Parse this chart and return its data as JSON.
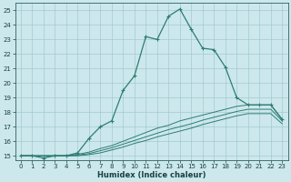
{
  "xlabel": "Humidex (Indice chaleur)",
  "bg_color": "#cce8ec",
  "grid_color": "#99c4ca",
  "line_color": "#2e7d72",
  "xlim": [
    -0.5,
    23.5
  ],
  "ylim": [
    14.7,
    25.5
  ],
  "xticks": [
    0,
    1,
    2,
    3,
    4,
    5,
    6,
    7,
    8,
    9,
    10,
    11,
    12,
    13,
    14,
    15,
    16,
    17,
    18,
    19,
    20,
    21,
    22,
    23
  ],
  "yticks": [
    15,
    16,
    17,
    18,
    19,
    20,
    21,
    22,
    23,
    24,
    25
  ],
  "main_line": {
    "x": [
      0,
      1,
      2,
      3,
      4,
      5,
      6,
      7,
      8,
      9,
      10,
      11,
      12,
      13,
      14,
      15,
      16,
      17,
      18,
      19,
      20,
      21,
      22,
      23
    ],
    "y": [
      15.0,
      15.0,
      14.85,
      15.0,
      15.0,
      15.2,
      16.2,
      17.0,
      17.4,
      19.5,
      20.5,
      23.2,
      23.0,
      24.6,
      25.1,
      23.7,
      22.4,
      22.3,
      21.1,
      19.0,
      18.5,
      18.5,
      18.5,
      17.5
    ]
  },
  "flat_lines": [
    {
      "x": [
        0,
        1,
        2,
        3,
        4,
        5,
        6,
        7,
        8,
        9,
        10,
        11,
        12,
        13,
        14,
        15,
        16,
        17,
        18,
        19,
        20,
        21,
        22,
        23
      ],
      "y": [
        15.0,
        15.0,
        15.0,
        15.0,
        15.0,
        15.1,
        15.25,
        15.5,
        15.7,
        16.0,
        16.3,
        16.6,
        16.9,
        17.1,
        17.4,
        17.6,
        17.8,
        18.0,
        18.2,
        18.4,
        18.5,
        18.5,
        18.5,
        17.5
      ]
    },
    {
      "x": [
        0,
        1,
        2,
        3,
        4,
        5,
        6,
        7,
        8,
        9,
        10,
        11,
        12,
        13,
        14,
        15,
        16,
        17,
        18,
        19,
        20,
        21,
        22,
        23
      ],
      "y": [
        15.0,
        15.0,
        15.0,
        15.0,
        15.0,
        15.05,
        15.15,
        15.35,
        15.55,
        15.8,
        16.05,
        16.3,
        16.55,
        16.8,
        17.0,
        17.2,
        17.45,
        17.65,
        17.85,
        18.05,
        18.2,
        18.2,
        18.2,
        17.4
      ]
    },
    {
      "x": [
        0,
        1,
        2,
        3,
        4,
        5,
        6,
        7,
        8,
        9,
        10,
        11,
        12,
        13,
        14,
        15,
        16,
        17,
        18,
        19,
        20,
        21,
        22,
        23
      ],
      "y": [
        15.0,
        15.0,
        15.0,
        15.0,
        15.0,
        15.0,
        15.08,
        15.2,
        15.4,
        15.6,
        15.85,
        16.05,
        16.3,
        16.5,
        16.7,
        16.9,
        17.15,
        17.35,
        17.55,
        17.75,
        17.9,
        17.9,
        17.9,
        17.2
      ]
    }
  ]
}
